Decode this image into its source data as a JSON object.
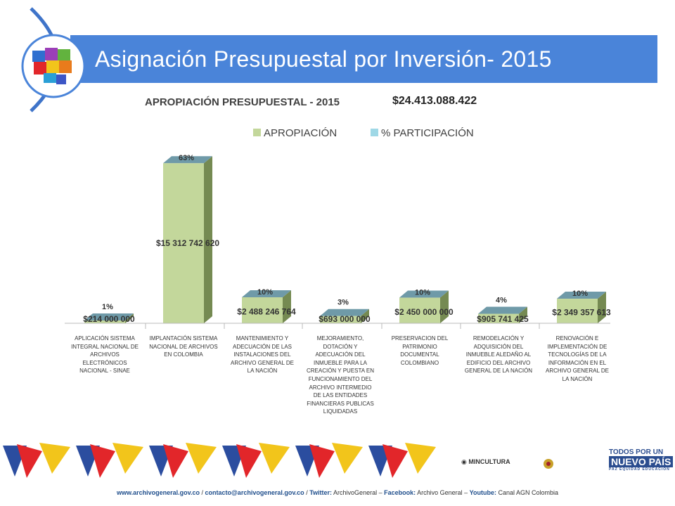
{
  "slide": {
    "title": "Asignación Presupuestal por Inversión- 2015",
    "subheading": "APROPIACIÓN PRESUPUESTAL - 2015",
    "total": "$24.413.088.422"
  },
  "colors": {
    "title_band": "#4a84d9",
    "bar_front": "#c3d79b",
    "bar_side": "#758a52",
    "bar_top": "#6f9aa8",
    "legend_apropiacion": "#c3d79b",
    "legend_participacion": "#9fd8e6"
  },
  "chart_data": {
    "type": "bar",
    "legend": [
      "APROPIACIÓN",
      "% PARTICIPACIÓN"
    ],
    "legend_position": "top",
    "categories": [
      "APLICACIÓN SISTEMA INTEGRAL NACIONAL DE ARCHIVOS ELECTRÓNICOS NACIONAL - SINAE",
      "IMPLANTACIÓN SISTEMA NACIONAL DE ARCHIVOS EN COLOMBIA",
      "MANTENIMIENTO Y ADECUACIÓN DE LAS INSTALACIONES DEL ARCHIVO GENERAL DE LA NACIÓN",
      "MEJORAMIENTO, DOTACIÓN Y ADECUACIÓN DEL INMUEBLE PARA LA CREACIÓN Y PUESTA EN FUNCIONAMIENTO DEL ARCHIVO INTERMEDIO DE LAS ENTIDADES FINANCIERAS PUBLICAS LIQUIDADAS",
      "PRESERVACION DEL PATRIMONIO DOCUMENTAL COLOMBIANO",
      "REMODELACIÓN Y ADQUISICIÓN DEL INMUEBLE ALEDAÑO AL EDIFICIO DEL ARCHIVO GENERAL DE LA NACIÓN",
      "RENOVACIÓN E IMPLEMENTACIÓN DE TECNOLOGÍAS DE LA INFORMACIÓN EN EL ARCHIVO GENERAL DE LA NACIÓN"
    ],
    "series": [
      {
        "name": "APROPIACIÓN",
        "values": [
          214000000,
          15312742620,
          2488246764,
          693000000,
          2450000000,
          905741425,
          2349357613
        ],
        "labels": [
          "$214 000 000",
          "$15 312 742 620",
          "$2 488 246 764",
          "$693 000 000",
          "$2 450 000 000",
          "$905 741 425",
          "$2 349 357 613"
        ]
      },
      {
        "name": "% PARTICIPACIÓN",
        "values": [
          1,
          63,
          10,
          3,
          10,
          4,
          10
        ],
        "labels": [
          "1%",
          "63%",
          "10%",
          "3%",
          "10%",
          "4%",
          "10%"
        ]
      }
    ],
    "ylim": [
      0,
      16000000000
    ],
    "grid": false
  },
  "footer": {
    "web": "www.archivogeneral.gov.co",
    "sep1": " / ",
    "email": "contacto@archivogeneral.gov.co",
    "sep2": " / ",
    "twitter_label": "Twitter:",
    "twitter_value": " ArchivoGeneral – ",
    "facebook_label": "Facebook:",
    "facebook_value": " Archivo General – ",
    "youtube_label": "Youtube:",
    "youtube_value": " Canal AGN Colombia",
    "mincultura": "MINCULTURA",
    "agn_logo": "ARCHIVO GENERAL DE LA NACIÓN COLOMBIA",
    "gov_line1": "TODOS POR UN",
    "gov_line2": "NUEVO PAÍS",
    "gov_line3": "PAZ EQUIDAD EDUCACIÓN"
  }
}
